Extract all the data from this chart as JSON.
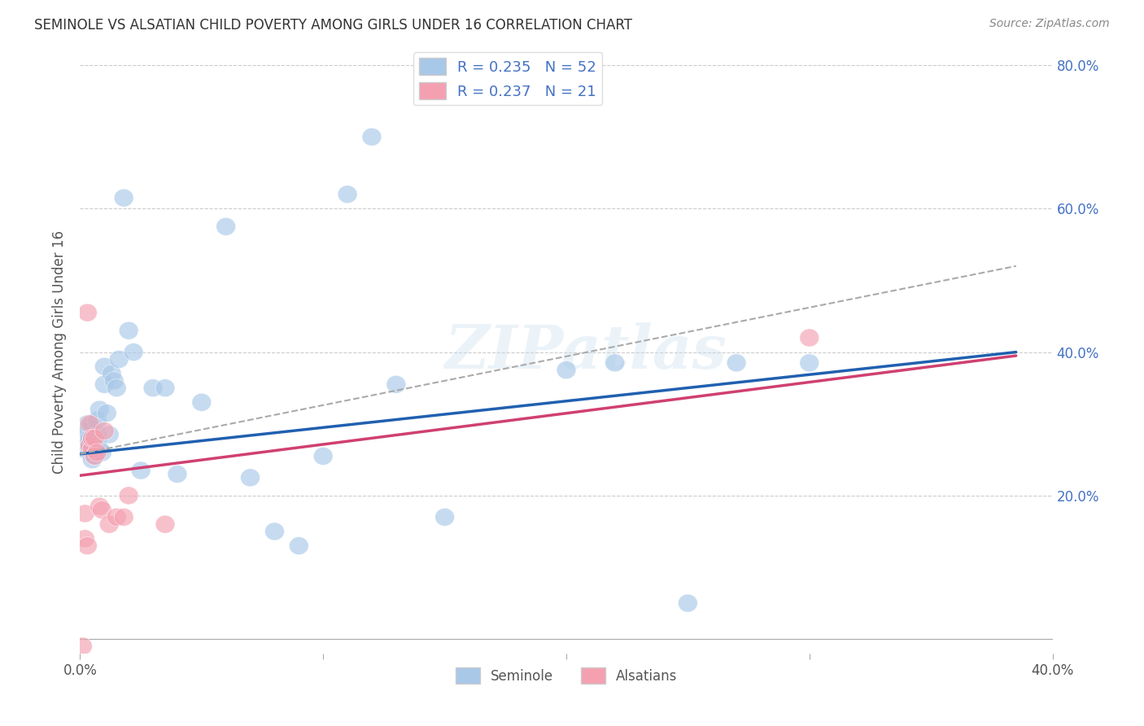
{
  "title": "SEMINOLE VS ALSATIAN CHILD POVERTY AMONG GIRLS UNDER 16 CORRELATION CHART",
  "source": "Source: ZipAtlas.com",
  "ylabel": "Child Poverty Among Girls Under 16",
  "xlim": [
    0.0,
    0.4
  ],
  "ylim": [
    -0.02,
    0.82
  ],
  "plot_ylim": [
    0.0,
    0.8
  ],
  "xticks": [
    0.0,
    0.1,
    0.2,
    0.3,
    0.4
  ],
  "xticklabels": [
    "0.0%",
    "",
    "",
    "",
    "40.0%"
  ],
  "yticks": [
    0.0,
    0.2,
    0.4,
    0.6,
    0.8
  ],
  "yticklabels_right": [
    "",
    "20.0%",
    "40.0%",
    "60.0%",
    "80.0%"
  ],
  "watermark": "ZIPatlas",
  "legend_r1": "R = 0.235",
  "legend_n1": "N = 52",
  "legend_r2": "R = 0.237",
  "legend_n2": "N = 21",
  "blue_color": "#a8c8e8",
  "pink_color": "#f4a0b0",
  "blue_line_color": "#2060b0",
  "pink_line_color": "#d04070",
  "dashed_line_color": "#aaaaaa",
  "seminole_x": [
    0.001,
    0.002,
    0.002,
    0.003,
    0.003,
    0.003,
    0.004,
    0.004,
    0.004,
    0.005,
    0.005,
    0.005,
    0.005,
    0.005,
    0.006,
    0.006,
    0.007,
    0.007,
    0.007,
    0.008,
    0.008,
    0.009,
    0.01,
    0.01,
    0.011,
    0.012,
    0.013,
    0.014,
    0.015,
    0.016,
    0.018,
    0.02,
    0.022,
    0.025,
    0.03,
    0.035,
    0.04,
    0.05,
    0.06,
    0.07,
    0.08,
    0.09,
    0.1,
    0.11,
    0.12,
    0.13,
    0.15,
    0.2,
    0.22,
    0.25,
    0.27,
    0.3
  ],
  "seminole_y": [
    0.265,
    0.275,
    0.285,
    0.29,
    0.295,
    0.3,
    0.26,
    0.27,
    0.28,
    0.25,
    0.26,
    0.27,
    0.28,
    0.3,
    0.255,
    0.265,
    0.275,
    0.285,
    0.305,
    0.265,
    0.32,
    0.26,
    0.355,
    0.38,
    0.315,
    0.285,
    0.37,
    0.36,
    0.35,
    0.39,
    0.615,
    0.43,
    0.4,
    0.235,
    0.35,
    0.35,
    0.23,
    0.33,
    0.575,
    0.225,
    0.15,
    0.13,
    0.255,
    0.62,
    0.7,
    0.355,
    0.17,
    0.375,
    0.385,
    0.05,
    0.385,
    0.385
  ],
  "alsatian_x": [
    0.001,
    0.002,
    0.002,
    0.003,
    0.003,
    0.004,
    0.004,
    0.005,
    0.005,
    0.006,
    0.006,
    0.007,
    0.008,
    0.009,
    0.01,
    0.012,
    0.015,
    0.018,
    0.02,
    0.035,
    0.3
  ],
  "alsatian_y": [
    -0.01,
    0.14,
    0.175,
    0.13,
    0.455,
    0.27,
    0.3,
    0.265,
    0.28,
    0.255,
    0.28,
    0.26,
    0.185,
    0.18,
    0.29,
    0.16,
    0.17,
    0.17,
    0.2,
    0.16,
    0.42
  ],
  "blue_trend_x": [
    0.0,
    0.385
  ],
  "blue_trend_y": [
    0.258,
    0.4
  ],
  "pink_trend_x": [
    0.0,
    0.385
  ],
  "pink_trend_y": [
    0.228,
    0.395
  ],
  "dash_trend_x": [
    0.0,
    0.385
  ],
  "dash_trend_y": [
    0.258,
    0.52
  ]
}
